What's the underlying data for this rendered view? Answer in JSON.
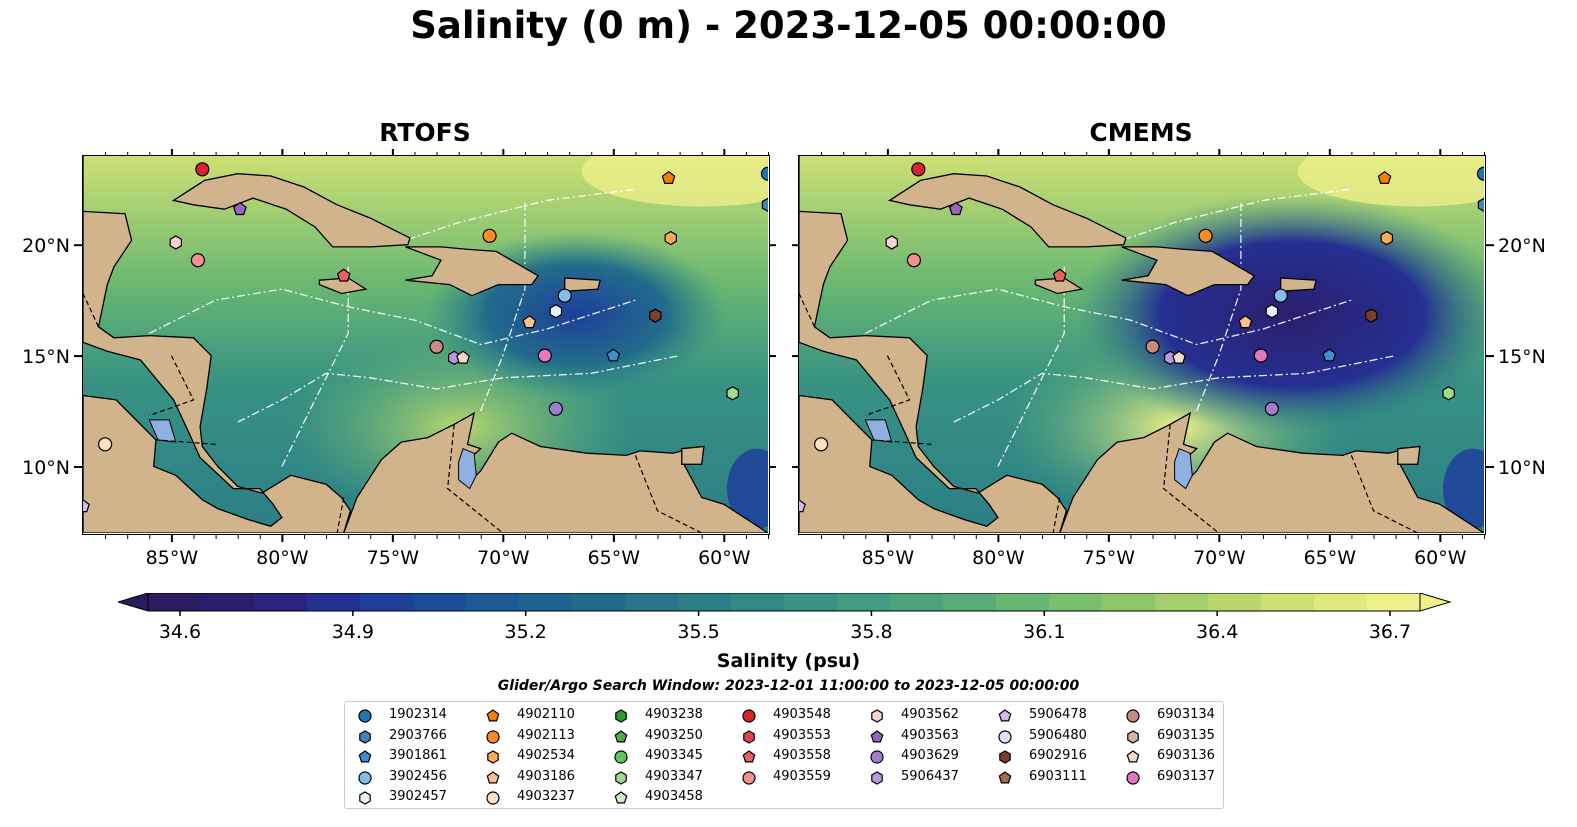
{
  "title": "Salinity (0 m) - 2023-12-05 00:00:00",
  "panels": [
    {
      "title": "RTOFS"
    },
    {
      "title": "CMEMS"
    }
  ],
  "colorbar": {
    "label": "Salinity (psu)",
    "ticks": [
      "34.6",
      "34.9",
      "35.2",
      "35.5",
      "35.8",
      "36.1",
      "36.4",
      "36.7"
    ],
    "extend": "both",
    "colors": [
      "#2a1c5e",
      "#2c1e6e",
      "#2a2380",
      "#243091",
      "#1e3f9a",
      "#1b4c98",
      "#1c5893",
      "#1e638f",
      "#226c8b",
      "#267588",
      "#2b7e86",
      "#318885",
      "#389283",
      "#409b80",
      "#4ba47c",
      "#58ad77",
      "#67b672",
      "#79bf6d",
      "#8dc76a",
      "#a2cf6a",
      "#b8d76d",
      "#cde074",
      "#e0e87e",
      "#f0f08a"
    ]
  },
  "search_window": "Glider/Argo Search Window: 2023-12-01 11:00:00 to 2023-12-05 00:00:00",
  "legend": [
    {
      "id": "1902314",
      "marker": "circle",
      "color": "#1f77b4"
    },
    {
      "id": "2903766",
      "marker": "hexagon",
      "color": "#3f86c0"
    },
    {
      "id": "3901861",
      "marker": "pentagon",
      "color": "#3f8fd0"
    },
    {
      "id": "3902456",
      "marker": "circle",
      "color": "#86bde8"
    },
    {
      "id": "3902457",
      "marker": "hexagon",
      "color": "#e6f2fc"
    },
    {
      "id": "4902110",
      "marker": "pentagon",
      "color": "#f28005"
    },
    {
      "id": "4902113",
      "marker": "circle",
      "color": "#fb8c26"
    },
    {
      "id": "4902534",
      "marker": "hexagon",
      "color": "#fdaa55"
    },
    {
      "id": "4903186",
      "marker": "pentagon",
      "color": "#fdc08a"
    },
    {
      "id": "4903237",
      "marker": "circle",
      "color": "#fee0c2"
    },
    {
      "id": "4903238",
      "marker": "hexagon",
      "color": "#2c9d2c"
    },
    {
      "id": "4903250",
      "marker": "pentagon",
      "color": "#47b047"
    },
    {
      "id": "4903345",
      "marker": "circle",
      "color": "#5fc55f"
    },
    {
      "id": "4903347",
      "marker": "hexagon",
      "color": "#9ddc8d"
    },
    {
      "id": "4903458",
      "marker": "pentagon",
      "color": "#cdf3c0"
    },
    {
      "id": "4903548",
      "marker": "circle",
      "color": "#d62728"
    },
    {
      "id": "4903553",
      "marker": "hexagon",
      "color": "#e04448"
    },
    {
      "id": "4903558",
      "marker": "pentagon",
      "color": "#e86060"
    },
    {
      "id": "4903559",
      "marker": "circle",
      "color": "#f19090"
    },
    {
      "id": "4903562",
      "marker": "hexagon",
      "color": "#fbd1d1"
    },
    {
      "id": "4903563",
      "marker": "pentagon",
      "color": "#9467bd"
    },
    {
      "id": "4903629",
      "marker": "circle",
      "color": "#a17dd0"
    },
    {
      "id": "5906437",
      "marker": "hexagon",
      "color": "#b79ae0"
    },
    {
      "id": "5906478",
      "marker": "pentagon",
      "color": "#d2baf0"
    },
    {
      "id": "5906480",
      "marker": "circle",
      "color": "#ecdcfb"
    },
    {
      "id": "6902916",
      "marker": "hexagon",
      "color": "#7b3f26"
    },
    {
      "id": "6903111",
      "marker": "pentagon",
      "color": "#a06a55"
    },
    {
      "id": "6903134",
      "marker": "circle",
      "color": "#c58d7d"
    },
    {
      "id": "6903135",
      "marker": "hexagon",
      "color": "#dcb1a5"
    },
    {
      "id": "6903136",
      "marker": "pentagon",
      "color": "#f8d9cb"
    },
    {
      "id": "6903137",
      "marker": "circle",
      "color": "#e377c2"
    }
  ],
  "chart_data": {
    "type": "heatmap",
    "variable": "Salinity",
    "units": "psu",
    "depth_m": 0,
    "time": "2023-12-05 00:00:00",
    "color_range": [
      34.6,
      36.7
    ],
    "xlim": [
      -89,
      -58
    ],
    "ylim": [
      7,
      24
    ],
    "x_ticks": [
      "85°W",
      "80°W",
      "75°W",
      "70°W",
      "65°W",
      "60°W"
    ],
    "x_tick_values": [
      -85,
      -80,
      -75,
      -70,
      -65,
      -60
    ],
    "y_ticks": [
      "10°N",
      "15°N",
      "20°N"
    ],
    "y_tick_values": [
      10,
      15,
      20
    ],
    "land_color": "#d2b48c",
    "floats": [
      {
        "id": "1902314",
        "lon": -58.0,
        "lat": 23.2
      },
      {
        "id": "2903766",
        "lon": -58.0,
        "lat": 21.8
      },
      {
        "id": "3901861",
        "lon": -65.0,
        "lat": 15.0
      },
      {
        "id": "3902456",
        "lon": -67.2,
        "lat": 17.7
      },
      {
        "id": "3902457",
        "lon": -67.6,
        "lat": 17.0
      },
      {
        "id": "4902110",
        "lon": -62.5,
        "lat": 23.0
      },
      {
        "id": "4902113",
        "lon": -70.6,
        "lat": 20.4
      },
      {
        "id": "4902534",
        "lon": -62.4,
        "lat": 20.3
      },
      {
        "id": "4903186",
        "lon": -68.8,
        "lat": 16.5
      },
      {
        "id": "4903237",
        "lon": -88.0,
        "lat": 11.0
      },
      {
        "id": "4903347",
        "lon": -59.6,
        "lat": 13.3
      },
      {
        "id": "4903548",
        "lon": -83.6,
        "lat": 23.4
      },
      {
        "id": "4903558",
        "lon": -77.2,
        "lat": 18.6
      },
      {
        "id": "4903559",
        "lon": -83.8,
        "lat": 19.3
      },
      {
        "id": "4903562",
        "lon": -84.8,
        "lat": 20.1
      },
      {
        "id": "4903563",
        "lon": -81.9,
        "lat": 21.6
      },
      {
        "id": "4903629",
        "lon": -67.6,
        "lat": 12.6
      },
      {
        "id": "5906437",
        "lon": -72.2,
        "lat": 14.9
      },
      {
        "id": "5906478",
        "lon": -89.0,
        "lat": 8.2
      },
      {
        "id": "6902916",
        "lon": -63.1,
        "lat": 16.8
      },
      {
        "id": "6903134",
        "lon": -73.0,
        "lat": 15.4
      },
      {
        "id": "6903136",
        "lon": -71.8,
        "lat": 14.9
      },
      {
        "id": "6903137",
        "lon": -68.1,
        "lat": 15.0
      }
    ]
  }
}
